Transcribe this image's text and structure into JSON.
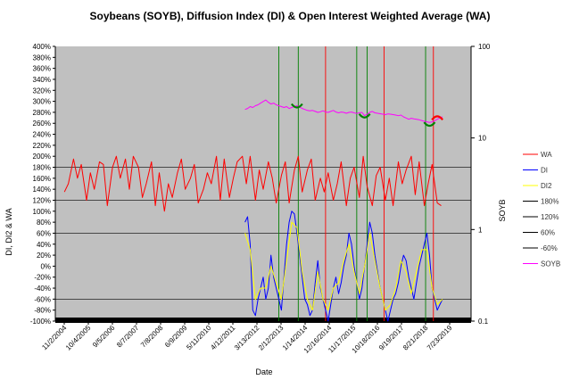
{
  "chart_data": {
    "type": "line",
    "title": "Soybeans (SOYB), Diffusion Index (DI) & Open Interest Weighted Average (WA)",
    "xlabel": "Date",
    "ylabel_left": "DI, DI2 & WA",
    "ylabel_right": "SOYB",
    "y_left_ticks": [
      "400%",
      "380%",
      "360%",
      "340%",
      "320%",
      "300%",
      "280%",
      "260%",
      "240%",
      "220%",
      "200%",
      "180%",
      "160%",
      "140%",
      "120%",
      "100%",
      "80%",
      "60%",
      "40%",
      "20%",
      "0%",
      "-20%",
      "-40%",
      "-60%",
      "-80%",
      "-100%"
    ],
    "ylim_left": [
      -100,
      400
    ],
    "y_right_ticks": [
      "100",
      "10",
      "1",
      "0.1"
    ],
    "ylim_right": [
      0.1,
      100
    ],
    "y_right_scale": "log",
    "x_tick_labels": [
      "11/2/2004",
      "10/4/2005",
      "9/5/2006",
      "8/7/2007",
      "7/8/2008",
      "6/9/2009",
      "5/11/2010",
      "4/12/2011",
      "3/13/2012",
      "2/12/2013",
      "1/14/2014",
      "12/16/2014",
      "11/17/2015",
      "10/18/2016",
      "9/19/2017",
      "8/21/2018",
      "7/23/2019"
    ],
    "xlim": [
      2004.5,
      2020.5
    ],
    "background": "#c0c0c0",
    "grid": false,
    "legend_position": "right",
    "colors": {
      "WA": "#ff0000",
      "DI": "#0000ff",
      "DI2": "#ffff00",
      "h180": "#000000",
      "h120": "#000000",
      "h60": "#000000",
      "hm60": "#000000",
      "SOYB": "#ff00ff",
      "green_marker": "#008000",
      "red_marker": "#ff0000",
      "arc_green": "#008000",
      "arc_red": "#ff0000"
    },
    "legend": [
      {
        "label": "WA",
        "color": "#ff0000"
      },
      {
        "label": "DI",
        "color": "#0000ff"
      },
      {
        "label": "DI2",
        "color": "#ffff00"
      },
      {
        "label": "180%",
        "color": "#000000"
      },
      {
        "label": "120%",
        "color": "#000000"
      },
      {
        "label": "60%",
        "color": "#000000"
      },
      {
        "label": "-60%",
        "color": "#000000"
      },
      {
        "label": "SOYB",
        "color": "#ff00ff"
      }
    ],
    "reference_lines": [
      180,
      120,
      60,
      -60
    ],
    "vertical_markers": [
      {
        "date": 2013.1,
        "color": "green"
      },
      {
        "date": 2013.85,
        "color": "green"
      },
      {
        "date": 2014.9,
        "color": "red"
      },
      {
        "date": 2016.1,
        "color": "green"
      },
      {
        "date": 2016.5,
        "color": "green"
      },
      {
        "date": 2017.15,
        "color": "red"
      },
      {
        "date": 2018.75,
        "color": "green"
      },
      {
        "date": 2019.05,
        "color": "red"
      }
    ],
    "arcs": [
      {
        "date": 2013.8,
        "soyb": 22.5,
        "color": "green",
        "opens": "up"
      },
      {
        "date": 2016.4,
        "soyb": 17.5,
        "color": "green",
        "opens": "up"
      },
      {
        "date": 2018.9,
        "soyb": 14.2,
        "color": "green",
        "opens": "up"
      },
      {
        "date": 2019.2,
        "soyb": 16.5,
        "color": "red",
        "opens": "down"
      }
    ],
    "series": [
      {
        "name": "WA",
        "x": [
          2004.85,
          2005.0,
          2005.2,
          2005.35,
          2005.5,
          2005.7,
          2005.85,
          2006.0,
          2006.2,
          2006.35,
          2006.5,
          2006.7,
          2006.85,
          2007.0,
          2007.2,
          2007.35,
          2007.5,
          2007.7,
          2007.85,
          2008.0,
          2008.2,
          2008.35,
          2008.5,
          2008.7,
          2008.85,
          2009.0,
          2009.2,
          2009.35,
          2009.5,
          2009.7,
          2009.85,
          2010.0,
          2010.2,
          2010.35,
          2010.5,
          2010.7,
          2010.85,
          2011.0,
          2011.2,
          2011.35,
          2011.5,
          2011.7,
          2011.85,
          2012.0,
          2012.2,
          2012.35,
          2012.5,
          2012.7,
          2012.85,
          2013.0,
          2013.2,
          2013.35,
          2013.5,
          2013.7,
          2013.85,
          2014.0,
          2014.2,
          2014.35,
          2014.5,
          2014.7,
          2014.85,
          2015.0,
          2015.2,
          2015.35,
          2015.5,
          2015.7,
          2015.85,
          2016.0,
          2016.2,
          2016.35,
          2016.5,
          2016.7,
          2016.85,
          2017.0,
          2017.2,
          2017.35,
          2017.5,
          2017.7,
          2017.85,
          2018.0,
          2018.2,
          2018.35,
          2018.5,
          2018.7,
          2018.85,
          2019.0,
          2019.2,
          2019.35
        ],
        "values": [
          135,
          150,
          195,
          160,
          185,
          120,
          170,
          140,
          190,
          185,
          110,
          180,
          200,
          160,
          195,
          140,
          200,
          180,
          125,
          150,
          190,
          110,
          170,
          100,
          150,
          125,
          170,
          195,
          140,
          160,
          185,
          115,
          140,
          170,
          150,
          200,
          120,
          195,
          125,
          160,
          190,
          200,
          150,
          200,
          120,
          175,
          140,
          190,
          160,
          115,
          165,
          190,
          115,
          175,
          200,
          135,
          175,
          195,
          120,
          160,
          135,
          170,
          120,
          150,
          190,
          110,
          160,
          180,
          125,
          200,
          145,
          110,
          165,
          180,
          120,
          160,
          110,
          190,
          150,
          175,
          200,
          130,
          190,
          110,
          150,
          185,
          115,
          110
        ]
      },
      {
        "name": "DI",
        "x": [
          2011.8,
          2011.9,
          2012.0,
          2012.1,
          2012.2,
          2012.3,
          2012.4,
          2012.5,
          2012.6,
          2012.7,
          2012.8,
          2012.9,
          2013.0,
          2013.1,
          2013.2,
          2013.3,
          2013.4,
          2013.5,
          2013.6,
          2013.7,
          2013.8,
          2013.9,
          2014.0,
          2014.1,
          2014.2,
          2014.3,
          2014.4,
          2014.5,
          2014.6,
          2014.7,
          2014.8,
          2014.9,
          2015.0,
          2015.1,
          2015.2,
          2015.3,
          2015.4,
          2015.5,
          2015.6,
          2015.7,
          2015.8,
          2015.9,
          2016.0,
          2016.1,
          2016.2,
          2016.3,
          2016.4,
          2016.5,
          2016.6,
          2016.7,
          2016.8,
          2016.9,
          2017.0,
          2017.1,
          2017.2,
          2017.3,
          2017.4,
          2017.5,
          2017.6,
          2017.7,
          2017.8,
          2017.9,
          2018.0,
          2018.1,
          2018.2,
          2018.3,
          2018.4,
          2018.5,
          2018.6,
          2018.7,
          2018.8,
          2018.9,
          2019.0,
          2019.1,
          2019.2,
          2019.3,
          2019.4
        ],
        "values": [
          80,
          90,
          40,
          -80,
          -90,
          -60,
          -40,
          -20,
          -60,
          -40,
          20,
          -20,
          -40,
          -60,
          -80,
          -20,
          40,
          80,
          100,
          95,
          60,
          20,
          -20,
          -60,
          -70,
          -90,
          -80,
          -30,
          10,
          -40,
          -60,
          -80,
          -100,
          -70,
          -40,
          -20,
          -50,
          -30,
          0,
          20,
          60,
          40,
          0,
          -30,
          -60,
          -40,
          0,
          40,
          80,
          60,
          20,
          -10,
          -40,
          -60,
          -80,
          -100,
          -80,
          -60,
          -50,
          -30,
          0,
          20,
          10,
          -20,
          -40,
          -60,
          -30,
          0,
          20,
          40,
          60,
          20,
          -40,
          -60,
          -80,
          -70,
          -60
        ]
      },
      {
        "name": "DI2",
        "x": [
          2011.8,
          2012.0,
          2012.2,
          2012.4,
          2012.6,
          2012.8,
          2013.0,
          2013.2,
          2013.4,
          2013.6,
          2013.8,
          2014.0,
          2014.2,
          2014.4,
          2014.6,
          2014.8,
          2015.0,
          2015.2,
          2015.4,
          2015.6,
          2015.8,
          2016.0,
          2016.2,
          2016.4,
          2016.6,
          2016.8,
          2017.0,
          2017.2,
          2017.4,
          2017.6,
          2017.8,
          2018.0,
          2018.2,
          2018.4,
          2018.6,
          2018.8,
          2019.0,
          2019.2,
          2019.4
        ],
        "values": [
          60,
          30,
          -60,
          -40,
          -40,
          0,
          -30,
          -60,
          10,
          80,
          70,
          -10,
          -60,
          -80,
          -10,
          -60,
          -80,
          -40,
          -30,
          10,
          40,
          -10,
          -50,
          0,
          60,
          10,
          -40,
          -80,
          -70,
          -40,
          10,
          -10,
          -50,
          -10,
          30,
          30,
          -40,
          -70,
          -60
        ]
      },
      {
        "name": "SOYB",
        "x": [
          2011.8,
          2011.9,
          2012.0,
          2012.1,
          2012.2,
          2012.3,
          2012.4,
          2012.5,
          2012.6,
          2012.7,
          2012.8,
          2012.9,
          2013.0,
          2013.1,
          2013.2,
          2013.3,
          2013.4,
          2013.5,
          2013.6,
          2013.7,
          2013.8,
          2013.9,
          2014.0,
          2014.1,
          2014.2,
          2014.3,
          2014.4,
          2014.5,
          2014.6,
          2014.7,
          2014.8,
          2014.9,
          2015.0,
          2015.1,
          2015.2,
          2015.3,
          2015.4,
          2015.5,
          2015.6,
          2015.7,
          2015.8,
          2015.9,
          2016.0,
          2016.1,
          2016.2,
          2016.3,
          2016.4,
          2016.5,
          2016.6,
          2016.7,
          2016.8,
          2016.9,
          2017.0,
          2017.1,
          2017.2,
          2017.3,
          2017.4,
          2017.5,
          2017.6,
          2017.7,
          2017.8,
          2017.9,
          2018.0,
          2018.1,
          2018.2,
          2018.3,
          2018.4,
          2018.5,
          2018.6,
          2018.7,
          2018.8,
          2018.9,
          2019.0,
          2019.1,
          2019.2,
          2019.3,
          2019.4
        ],
        "values": [
          20.5,
          21,
          22,
          21.5,
          22.5,
          23,
          24,
          25,
          26,
          24.5,
          23.5,
          24,
          23,
          22.5,
          22,
          21.5,
          22,
          21,
          21.5,
          22,
          22.5,
          21.8,
          21,
          20.5,
          20,
          19.8,
          20,
          19.5,
          19,
          19.3,
          19.8,
          19.2,
          19,
          19.5,
          20,
          19.2,
          18.8,
          19.2,
          19,
          18.6,
          19,
          19.2,
          18.8,
          18.5,
          18.8,
          19,
          17.5,
          18.2,
          19,
          19.5,
          18.8,
          18.6,
          18.4,
          18.2,
          18,
          18.3,
          18.2,
          18,
          17.8,
          17.5,
          17.8,
          17,
          16.5,
          16,
          16.4,
          16.2,
          16,
          15.8,
          15.5,
          15.2,
          15,
          14.8,
          15,
          15.4,
          16,
          16.6,
          17
        ]
      }
    ]
  }
}
